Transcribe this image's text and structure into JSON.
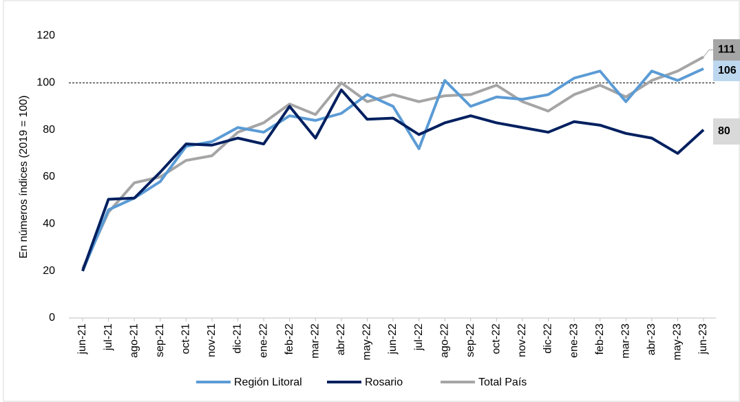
{
  "chart_data": {
    "type": "line",
    "y_label": "En números índices (2019 = 100)",
    "categories": [
      "jun-21",
      "jul-21",
      "ago-21",
      "sep-21",
      "oct-21",
      "nov-21",
      "dic-21",
      "ene-22",
      "feb-22",
      "mar-22",
      "abr-22",
      "may-22",
      "jun-22",
      "jul-22",
      "ago-22",
      "sep-22",
      "oct-22",
      "nov-22",
      "dic-22",
      "ene-23",
      "feb-23",
      "mar-23",
      "abr-23",
      "may-23",
      "jun-23"
    ],
    "series": [
      {
        "name": "Región Litoral",
        "color": "#5b9bd5",
        "label_bg": "#bdd7ee",
        "values": [
          20,
          46,
          51,
          58,
          73,
          75,
          81,
          79,
          86,
          84,
          87,
          95,
          90,
          72,
          101,
          90,
          94,
          93,
          95,
          102,
          105,
          92,
          105,
          101,
          106
        ]
      },
      {
        "name": "Rosario",
        "color": "#002060",
        "label_bg": "#d9d9d9",
        "values": [
          20,
          50.5,
          51,
          62,
          74,
          73.5,
          76.5,
          74,
          90,
          76.5,
          97,
          84.5,
          85,
          78,
          83,
          86,
          83,
          81,
          79,
          83.5,
          82,
          78.5,
          76.5,
          70,
          80
        ]
      },
      {
        "name": "Total País",
        "color": "#a5a5a5",
        "label_bg": "#a5a5a5",
        "values": [
          21,
          45,
          57.5,
          60,
          67,
          69,
          79,
          83,
          91,
          86.5,
          100,
          92,
          95,
          92,
          94.5,
          95,
          99,
          92,
          88,
          95,
          99,
          94,
          101,
          105,
          111
        ]
      }
    ],
    "reference_line": 100,
    "ylim": [
      0,
      120
    ],
    "yticks": [
      0,
      20,
      40,
      60,
      80,
      100,
      120
    ],
    "grid": false,
    "legend": "bottom"
  }
}
